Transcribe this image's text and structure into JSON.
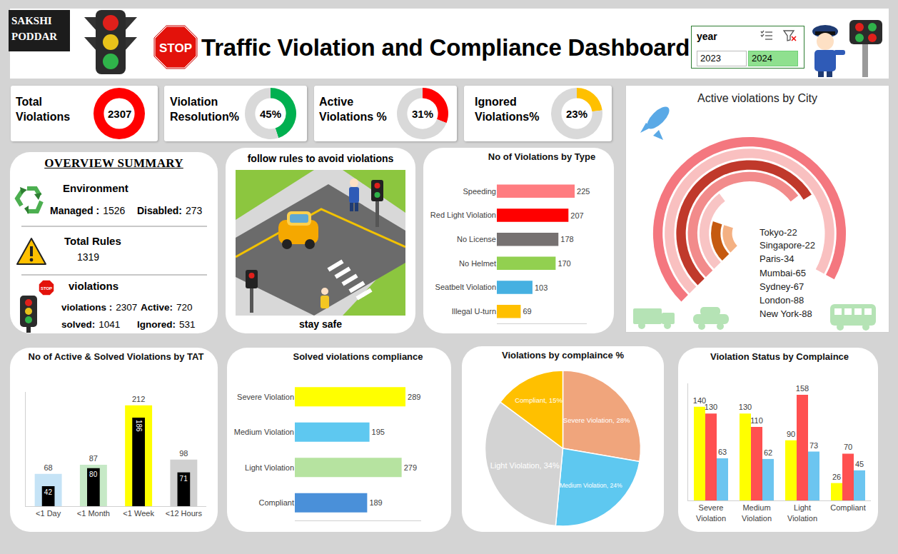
{
  "header": {
    "author": "SAKSHI PODDAR",
    "stop_sign": "STOP",
    "title": "Traffic Violation and Compliance Dashboard",
    "slicer": {
      "title": "year",
      "items": [
        "2023",
        "2024"
      ],
      "selected": "2024"
    }
  },
  "kpis": [
    {
      "label": "Total Violations",
      "value": 2307,
      "color": "#ff0000"
    },
    {
      "label": "Violation Resolution%",
      "value": 45,
      "value_label": "45%",
      "ylim": [
        0,
        100
      ],
      "color": "#00b050"
    },
    {
      "label": "Active Violations %",
      "value": 31,
      "value_label": "31%",
      "ylim": [
        0,
        100
      ],
      "color": "#ff0000"
    },
    {
      "label": "Ignored Violations%",
      "value": 23,
      "value_label": "23%",
      "ylim": [
        0,
        100
      ],
      "color": "#ffc000"
    }
  ],
  "overview": {
    "title": "OVERVIEW SUMMARY",
    "environment": {
      "title": "Environment",
      "items": [
        {
          "label": "Managed :",
          "value": 1526
        },
        {
          "label": "Disabled:",
          "value": 273
        }
      ]
    },
    "rules": {
      "title": "Total Rules",
      "value": 1319
    },
    "violations": {
      "title": "violations",
      "items": [
        {
          "label": "violations :",
          "value": 2307
        },
        {
          "label": "Active:",
          "value": 720
        },
        {
          "label": "solved:",
          "value": 1041
        },
        {
          "label": "Ignored:",
          "value": 531
        }
      ]
    }
  },
  "banner": {
    "title": "follow rules to avoid violations",
    "caption": "stay safe"
  },
  "chart_data": [
    {
      "type": "bar",
      "title": "No of Violations by Type",
      "orientation": "horizontal",
      "categories": [
        "Speeding",
        "Red Light Violation",
        "No License",
        "No Helmet",
        "Seatbelt Violation",
        "Illegal U-turn"
      ],
      "values": [
        225,
        207,
        178,
        170,
        103,
        69
      ],
      "colors": [
        "#ff7c80",
        "#ff0000",
        "#767171",
        "#92d050",
        "#45b0e1",
        "#ffc000"
      ],
      "xlim": [
        0,
        260
      ],
      "tick_labels": "y",
      "data_labels": true
    },
    {
      "type": "radial_bar",
      "title": "Active violations by City",
      "categories": [
        "Tokyo",
        "Singapore",
        "Paris",
        "Mumbai",
        "Sydney",
        "London",
        "New York"
      ],
      "values": [
        22,
        22,
        34,
        65,
        67,
        88,
        88
      ],
      "value_labels": [
        "Tokyo-22",
        "Singapore-22",
        "Paris-34",
        "Mumbai-65",
        "Sydney-67",
        "London-88",
        "New York-88"
      ],
      "colors": [
        "#f4b183",
        "#c55a11",
        "#f8c4c4",
        "#f28b8b",
        "#c0392b",
        "#f9c0c0",
        "#f4777f"
      ],
      "xlim": [
        0,
        125
      ],
      "tick_labels": false,
      "data_labels": true
    },
    {
      "type": "bar",
      "title": "No of Active & Solved Violations by TAT",
      "categories": [
        "<1 Day",
        "<1 Month",
        "<1 Week",
        "<12 Hours"
      ],
      "series": [
        {
          "colors": [
            "#c5e3f6",
            "#c6e9c6",
            "#ffff00",
            "#d0d0d0"
          ],
          "values": [
            68,
            87,
            212,
            98
          ]
        },
        {
          "color": "#000000",
          "values": [
            42,
            80,
            186,
            71
          ]
        }
      ],
      "ylim": [
        0,
        240
      ],
      "tick_labels": "x",
      "data_labels": true
    },
    {
      "type": "bar",
      "title": "Solved violations compliance",
      "orientation": "horizontal",
      "categories": [
        "Severe Violation",
        "Medium Violation",
        "Light Violation",
        "Compliant"
      ],
      "values": [
        289,
        195,
        279,
        189
      ],
      "colors": [
        "#ffff00",
        "#5ec8f0",
        "#b6e3a0",
        "#4a90d9"
      ],
      "xlim": [
        0,
        330
      ],
      "tick_labels": "y",
      "data_labels": true
    },
    {
      "type": "pie",
      "title": "Violations by complaince %",
      "categories": [
        "Severe Violation",
        "Medium Violation",
        "Light Violation",
        "Compliant"
      ],
      "values": [
        28,
        24,
        34,
        15
      ],
      "value_labels": [
        "Severe Violation, 28%",
        "Medium Violation, 24%",
        "Light Violation, 34%",
        "Compliant, 15%"
      ],
      "colors": [
        "#f0a57c",
        "#5ec8f0",
        "#d3d3d3",
        "#ffc000"
      ],
      "data_labels": true
    },
    {
      "type": "bar",
      "title": "Violation Status by Complaince",
      "categories": [
        "Severe Violation",
        "Medium Violation",
        "Light Violation",
        "Compliant"
      ],
      "series": [
        {
          "color": "#ffff00",
          "values": [
            140,
            130,
            90,
            26
          ]
        },
        {
          "color": "#ff5050",
          "values": [
            130,
            110,
            158,
            70
          ]
        },
        {
          "color": "#6cc5f0",
          "values": [
            63,
            62,
            73,
            45
          ]
        }
      ],
      "ylim": [
        0,
        175
      ],
      "tick_labels": "x",
      "data_labels": true
    }
  ]
}
